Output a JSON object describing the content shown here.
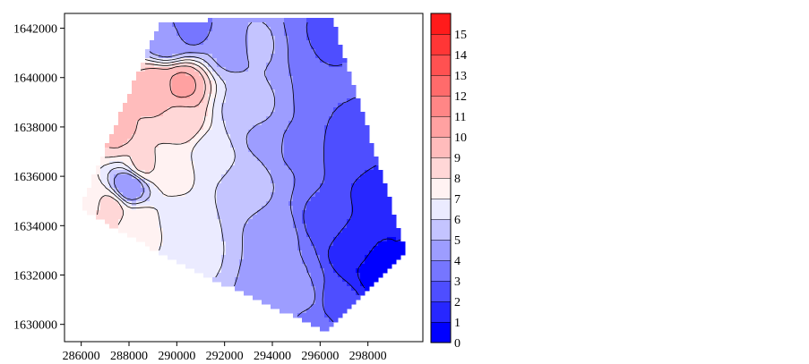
{
  "chart_data": {
    "type": "heatmap",
    "title": "",
    "xlabel": "",
    "ylabel": "",
    "xlim": [
      285300,
      300300
    ],
    "ylim": [
      1629300,
      1642600
    ],
    "x_ticks": [
      286000,
      288000,
      290000,
      292000,
      294000,
      296000,
      298000
    ],
    "y_ticks": [
      1630000,
      1632000,
      1634000,
      1636000,
      1638000,
      1640000,
      1642000
    ],
    "colorbar": {
      "min": 0,
      "max": 16,
      "ticks": [
        0,
        1,
        2,
        3,
        4,
        5,
        6,
        7,
        8,
        9,
        10,
        11,
        12,
        13,
        14,
        15
      ],
      "color_low": "#0000ff",
      "color_mid": "#ffffff",
      "color_high": "#ff0000",
      "mid_value": 6.5
    },
    "domain_polygon": [
      [
        285950,
        1634700
      ],
      [
        289300,
        1642300
      ],
      [
        296500,
        1642400
      ],
      [
        297500,
        1639400
      ],
      [
        299600,
        1632900
      ],
      [
        296300,
        1629700
      ],
      [
        290000,
        1632500
      ]
    ],
    "sample_points": [
      [
        286200,
        1634900,
        7.5
      ],
      [
        287200,
        1634700,
        8.4
      ],
      [
        288300,
        1634000,
        7.8
      ],
      [
        288600,
        1636500,
        8.2
      ],
      [
        288000,
        1635600,
        4.2
      ],
      [
        287500,
        1637800,
        9.2
      ],
      [
        289200,
        1639600,
        9.8
      ],
      [
        290200,
        1639700,
        10.2
      ],
      [
        290100,
        1638300,
        8.8
      ],
      [
        289800,
        1636300,
        7.4
      ],
      [
        290000,
        1634200,
        6.8
      ],
      [
        290800,
        1633000,
        6.2
      ],
      [
        291600,
        1636800,
        6.3
      ],
      [
        292700,
        1638700,
        5.8
      ],
      [
        292300,
        1641200,
        4.6
      ],
      [
        290600,
        1642000,
        3.7
      ],
      [
        289600,
        1641500,
        4.2
      ],
      [
        293400,
        1641300,
        5.2
      ],
      [
        295200,
        1641200,
        4.0
      ],
      [
        295900,
        1641500,
        2.5
      ],
      [
        296200,
        1642000,
        3.0
      ],
      [
        293000,
        1635600,
        5.2
      ],
      [
        294000,
        1633600,
        4.8
      ],
      [
        294600,
        1632000,
        4.1
      ],
      [
        293500,
        1637600,
        4.9
      ],
      [
        295000,
        1637300,
        3.8
      ],
      [
        296600,
        1638900,
        3.0
      ],
      [
        297200,
        1637200,
        2.4
      ],
      [
        296100,
        1634200,
        2.8
      ],
      [
        295000,
        1630800,
        5.0
      ],
      [
        295400,
        1630200,
        3.5
      ],
      [
        297400,
        1633100,
        1.2
      ],
      [
        298600,
        1632100,
        0.2
      ],
      [
        299200,
        1633300,
        1.0
      ],
      [
        298500,
        1635200,
        1.6
      ],
      [
        296900,
        1630800,
        2.2
      ],
      [
        296100,
        1629900,
        3.1
      ]
    ]
  }
}
